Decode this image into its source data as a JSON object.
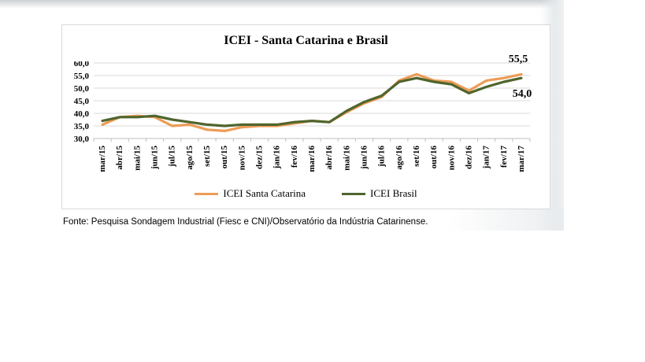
{
  "page": {
    "source_note": "Fonte: Pesquisa Sondagem Industrial (Fiesc e CNI)/Observatório da Indústria Catarinense."
  },
  "chart_data": {
    "type": "line",
    "title": "ICEI - Santa Catarina e Brasil",
    "categories": [
      "mar/15",
      "abr/15",
      "mai/15",
      "jun/15",
      "jul/15",
      "ago/15",
      "set/15",
      "out/15",
      "nov/15",
      "dez/15",
      "jan/16",
      "fev/16",
      "mar/16",
      "abr/16",
      "mai/16",
      "jun/16",
      "jul/16",
      "ago/16",
      "set/16",
      "out/16",
      "nov/16",
      "dez/16",
      "jan/17",
      "fev/17",
      "mar/17"
    ],
    "series": [
      {
        "name": "ICEI Santa Catarina",
        "color": "#ED9C57",
        "values": [
          35.5,
          38.5,
          39.0,
          38.5,
          35.0,
          35.5,
          33.5,
          33.0,
          34.5,
          35.0,
          35.0,
          36.0,
          37.0,
          36.5,
          40.5,
          44.0,
          46.5,
          53.0,
          55.5,
          53.0,
          52.5,
          49.0,
          53.0,
          54.0,
          55.5
        ]
      },
      {
        "name": "ICEI Brasil",
        "color": "#4F652D",
        "values": [
          37.0,
          38.5,
          38.5,
          39.0,
          37.5,
          36.5,
          35.5,
          35.0,
          35.5,
          35.5,
          35.5,
          36.5,
          37.0,
          36.5,
          41.0,
          44.5,
          47.0,
          52.5,
          54.0,
          52.5,
          51.5,
          48.0,
          50.5,
          52.5,
          54.0
        ]
      }
    ],
    "ylim": [
      30,
      60
    ],
    "ytick_step": 5,
    "decimal_separator": ",",
    "grid": true,
    "legend_position": "bottom",
    "end_labels": [
      {
        "text": "55,5",
        "series": "ICEI Santa Catarina"
      },
      {
        "text": "54,0",
        "series": "ICEI Brasil"
      }
    ],
    "axis_color": "#BFBFBF",
    "gridline_color": "#D9D9D9"
  }
}
